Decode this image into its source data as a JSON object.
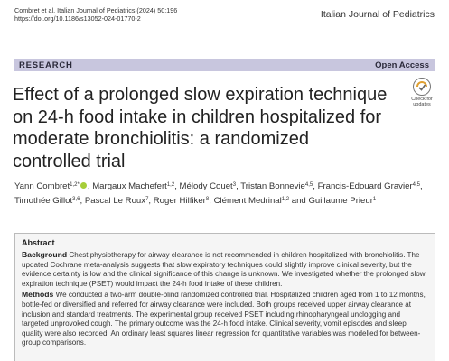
{
  "header": {
    "citation_line1": "Combret et al. Italian Journal of Pediatrics          (2024) 50:196",
    "citation_line2": "https://doi.org/10.1186/s13052-024-01770-2",
    "journal": "Italian Journal of Pediatrics"
  },
  "banner": {
    "section": "RESEARCH",
    "access": "Open Access"
  },
  "check_updates": {
    "line1": "Check for",
    "line2": "updates"
  },
  "article": {
    "title": "Effect of a prolonged slow expiration technique on 24-h food intake in children hospitalized for moderate bronchiolitis: a randomized controlled trial"
  },
  "authors": [
    {
      "name": "Yann Combret",
      "sup": "1,2*",
      "orcid": true
    },
    {
      "name": "Margaux Machefert",
      "sup": "1,2"
    },
    {
      "name": "Mélody Couet",
      "sup": "3"
    },
    {
      "name": "Tristan Bonnevie",
      "sup": "4,5"
    },
    {
      "name": "Francis-Edouard Gravier",
      "sup": "4,5"
    },
    {
      "name": "Timothée Gillot",
      "sup": "3,6"
    },
    {
      "name": "Pascal Le Roux",
      "sup": "7"
    },
    {
      "name": "Roger Hilfiker",
      "sup": "8"
    },
    {
      "name": "Clément Medrinal",
      "sup": "1,2"
    },
    {
      "name": "Guillaume Prieur",
      "sup": "1",
      "last": true
    }
  ],
  "authors_and": "and",
  "abstract": {
    "heading": "Abstract",
    "background_label": "Background",
    "background_text": "Chest physiotherapy for airway clearance is not recommended in children hospitalized with bronchiolitis. The updated Cochrane meta-analysis suggests that slow expiratory techniques could slightly improve clinical severity, but the evidence certainty is low and the clinical significance of this change is unknown. We investigated whether the prolonged slow expiration technique (PSET) would impact the 24-h food intake of these children.",
    "methods_label": "Methods",
    "methods_text": "We conducted a two-arm double-blind randomized controlled trial. Hospitalized children aged from 1 to 12 months, bottle-fed or diversified and referred for airway clearance were included. Both groups received upper airway clearance at inclusion and standard treatments. The experimental group received PSET including rhinopharyngeal unclogging and targeted unprovoked cough. The primary outcome was the 24-h food intake. Clinical severity, vomit episodes and sleep quality were also recorded. An ordinary least squares linear regression for quantitative variables was modelled for between-group comparisons."
  }
}
